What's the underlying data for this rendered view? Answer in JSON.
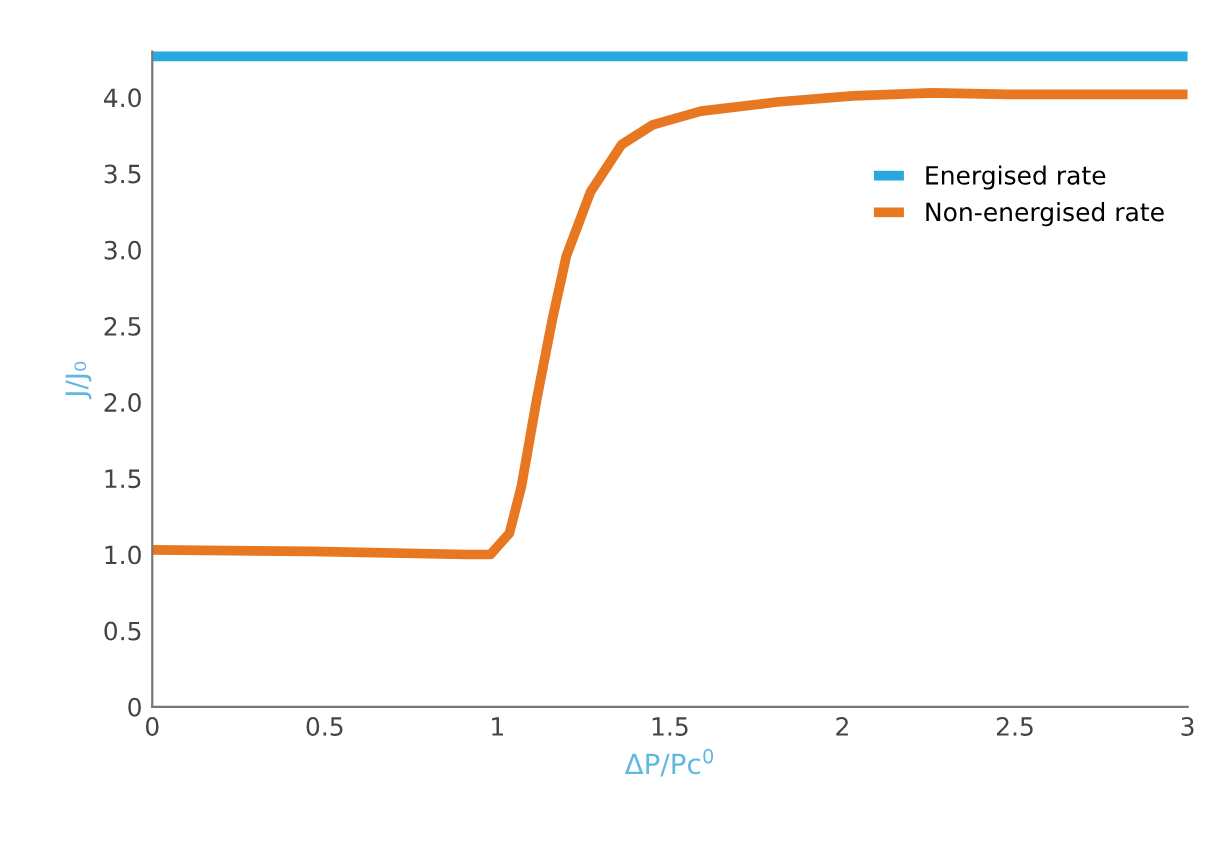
{
  "chart_data": {
    "type": "line",
    "xlabel": "ΔP/Pc$^{0}$",
    "ylabel": "J/J₀",
    "xlim": [
      0,
      3
    ],
    "ylim": [
      0,
      4.3
    ],
    "xticks": [
      0,
      0.5,
      1,
      1.5,
      2,
      2.5,
      3
    ],
    "yticks": [
      0,
      0.5,
      "1.0",
      1.5,
      "2.0",
      2.5,
      "3.0",
      3.5,
      "4.0"
    ],
    "grid": false,
    "legend": "right",
    "marker": "none",
    "line_style": "solid",
    "series": [
      {
        "name": "Energised rate",
        "color": "#29a8e0",
        "x": [
          0,
          3
        ],
        "values": [
          4.27,
          4.27
        ]
      },
      {
        "name": "Non-energised rate",
        "color": "#e87722",
        "x": [
          0,
          0.46,
          0.91,
          0.98,
          1.035,
          1.07,
          1.115,
          1.16,
          1.2,
          1.27,
          1.36,
          1.45,
          1.59,
          1.81,
          2.03,
          2.26,
          2.48,
          3
        ],
        "values": [
          1.03,
          1.02,
          1.0,
          1.0,
          1.14,
          1.45,
          2.03,
          2.55,
          2.96,
          3.38,
          3.69,
          3.82,
          3.91,
          3.97,
          4.01,
          4.03,
          4.02,
          4.02
        ]
      }
    ]
  }
}
